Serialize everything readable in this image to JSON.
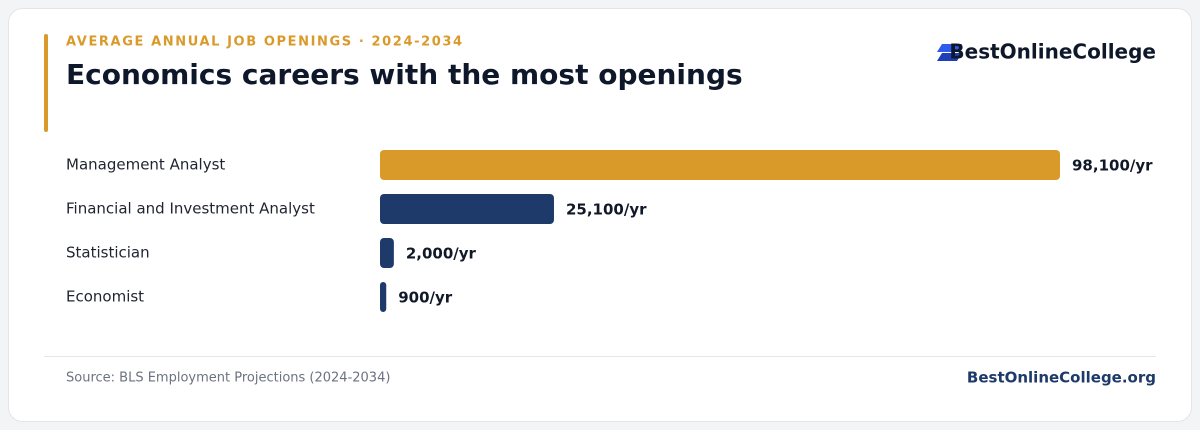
{
  "chart_data": {
    "type": "bar",
    "subtitle": "AVERAGE ANNUAL JOB OPENINGS · 2024-2034",
    "title": "Economics careers with the most openings",
    "brand": "BestOnlineCollege",
    "categories": [
      "Management Analyst",
      "Financial and Investment Analyst",
      "Statistician",
      "Economist"
    ],
    "values": [
      98100,
      25100,
      2000,
      900
    ],
    "value_labels": [
      "98,100/yr",
      "25,100/yr",
      "2,000/yr",
      "900/yr"
    ],
    "colors": [
      "#da9a2a",
      "#1e3a6b",
      "#1e3a6b",
      "#1e3a6b"
    ],
    "source": "Source: BLS Employment Projections (2024-2034)",
    "site": "BestOnlineCollege.org"
  }
}
